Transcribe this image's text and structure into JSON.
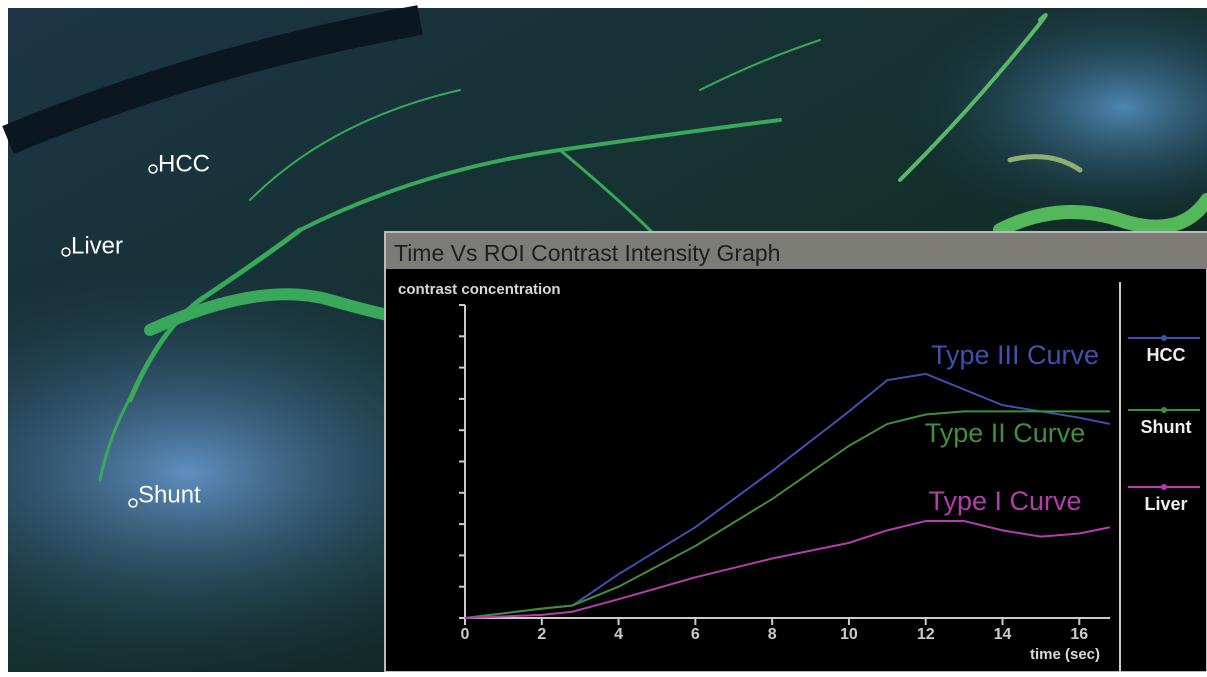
{
  "roi_labels": [
    "HCC",
    "Liver",
    "Shunt"
  ],
  "chart_data": {
    "type": "line",
    "title": "Time Vs ROI Contrast Intensity Graph",
    "y_label": "contrast concentration",
    "x_label": "time (sec)",
    "x": [
      0,
      2,
      2.8,
      4,
      6,
      8,
      10,
      11,
      12,
      13,
      14,
      15,
      16,
      16.8
    ],
    "xlim": [
      0,
      16.8
    ],
    "xticks": [
      0,
      2,
      4,
      6,
      8,
      10,
      12,
      14,
      16
    ],
    "ylim": [
      0,
      10
    ],
    "yticks": [
      0,
      1,
      2,
      3,
      4,
      5,
      6,
      7,
      8,
      9,
      10
    ],
    "series": [
      {
        "name": "HCC",
        "label": "Type III Curve",
        "color": "#3d52b0",
        "values": [
          0,
          0.3,
          0.4,
          1.4,
          2.9,
          4.7,
          6.6,
          7.6,
          7.8,
          7.3,
          6.8,
          6.6,
          6.4,
          6.2
        ]
      },
      {
        "name": "Shunt",
        "label": "Type II Curve",
        "color": "#3f8f3b",
        "values": [
          0,
          0.3,
          0.4,
          1.0,
          2.3,
          3.8,
          5.5,
          6.2,
          6.5,
          6.6,
          6.6,
          6.6,
          6.6,
          6.6
        ]
      },
      {
        "name": "Liver",
        "label": "Type I Curve",
        "color": "#b53cac",
        "values": [
          0,
          0.1,
          0.2,
          0.6,
          1.3,
          1.9,
          2.4,
          2.8,
          3.1,
          3.1,
          2.8,
          2.6,
          2.7,
          2.9
        ]
      }
    ]
  }
}
